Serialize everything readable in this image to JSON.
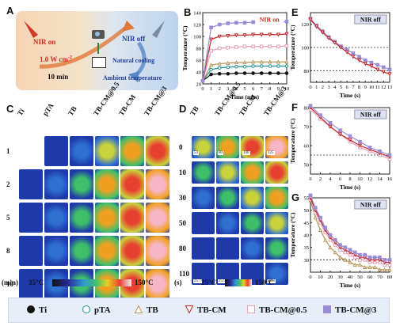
{
  "panels": {
    "a": "A",
    "b": "B",
    "c": "C",
    "d": "D",
    "e": "E",
    "f": "F",
    "g": "G"
  },
  "panel_a": {
    "nir_on": "NIR on",
    "power": "1.0 W cm",
    "power_sup": "-2",
    "time": "10 min",
    "nir_off": "NIR off",
    "natural": "Natural cooling",
    "ambient": "Ambient temperature"
  },
  "panel_c": {
    "columns": [
      "Ti",
      "pTA",
      "TB",
      "TB-CM@0.5",
      "TB-CM",
      "TB-CM@3"
    ],
    "rows": [
      "1",
      "2",
      "5",
      "8",
      "10"
    ],
    "unit": "(min)",
    "scale_min": "35°C",
    "scale_max": "150°C"
  },
  "panel_d": {
    "columns": [
      "TB",
      "TB-CM@0.5",
      "TB-CM",
      "TB-CM@3"
    ],
    "rows": [
      "0",
      "10",
      "30",
      "50",
      "80",
      "110"
    ],
    "unit": "(s)",
    "scale_min": "25°C",
    "scale_max": "150°C",
    "top_temps": [
      "54",
      "80",
      "100",
      "125"
    ],
    "bottom_temps": [
      "25.7",
      "25.9",
      "30.6",
      "30.8"
    ]
  },
  "legend": {
    "items": [
      {
        "label": "Ti",
        "marker": "dot",
        "color": "#111111"
      },
      {
        "label": "pTA",
        "marker": "circle",
        "color": "#1f8f8f"
      },
      {
        "label": "TB",
        "marker": "triangle",
        "color": "#b8965a"
      },
      {
        "label": "TB-CM",
        "marker": "tri-down",
        "color": "#c0262a"
      },
      {
        "label": "TB-CM@0.5",
        "marker": "square",
        "color": "#e8a0b4"
      },
      {
        "label": "TB-CM@3",
        "marker": "square-fill",
        "color": "#9c8cd4"
      }
    ]
  },
  "chart_data": [
    {
      "id": "B",
      "type": "line",
      "tag": "NIR on",
      "xlabel": "Time (min)",
      "ylabel": "Temperature (°C)",
      "xlim": [
        0,
        10
      ],
      "ylim": [
        20,
        140
      ],
      "xticks": [
        0,
        1,
        2,
        3,
        4,
        5,
        6,
        7,
        8,
        9,
        10
      ],
      "yticks": [
        20,
        40,
        60,
        80,
        100,
        120,
        140
      ],
      "x": [
        0,
        1,
        2,
        3,
        4,
        5,
        6,
        7,
        8,
        9,
        10
      ],
      "series": [
        {
          "name": "Ti",
          "color": "#111111",
          "values": [
            25,
            36,
            37,
            37,
            38,
            38,
            38,
            38,
            38,
            38,
            38
          ]
        },
        {
          "name": "pTA",
          "color": "#1f8f8f",
          "values": [
            25,
            44,
            47,
            48,
            49,
            49,
            50,
            50,
            50,
            50,
            50
          ]
        },
        {
          "name": "TB",
          "color": "#b8965a",
          "values": [
            25,
            52,
            54,
            55,
            56,
            56,
            57,
            57,
            57,
            57,
            57
          ]
        },
        {
          "name": "TB-CM@0.5",
          "color": "#e8a0b4",
          "values": [
            25,
            76,
            80,
            81,
            82,
            83,
            83,
            83,
            83,
            83,
            84
          ]
        },
        {
          "name": "TB-CM",
          "color": "#c0262a",
          "values": [
            25,
            95,
            100,
            101,
            102,
            102,
            103,
            103,
            103,
            103,
            104
          ]
        },
        {
          "name": "TB-CM@3",
          "color": "#9c8cd4",
          "values": [
            25,
            115,
            120,
            122,
            123,
            123,
            124,
            124,
            124,
            124,
            125
          ]
        }
      ]
    },
    {
      "id": "E",
      "type": "line",
      "tag": "NIR off",
      "xlabel": "Time (s)",
      "ylabel": "Temperature (°C)",
      "xlim": [
        0,
        13
      ],
      "ylim": [
        70,
        130
      ],
      "xticks": [
        0,
        1,
        2,
        3,
        4,
        5,
        6,
        7,
        8,
        9,
        10,
        11,
        12,
        13
      ],
      "yticks": [
        80,
        100,
        120
      ],
      "hlines": [
        100,
        80
      ],
      "x": [
        0,
        1,
        2,
        3,
        4,
        5,
        6,
        7,
        8,
        9,
        10,
        11,
        12,
        13
      ],
      "series": [
        {
          "name": "TB-CM@3",
          "color": "#9c8cd4",
          "values": [
            125,
            119,
            114,
            109,
            105,
            101,
            98,
            95,
            92,
            89,
            87,
            85,
            83,
            81
          ]
        },
        {
          "name": "TB-CM",
          "color": "#c0262a",
          "values": [
            124,
            118,
            113,
            108,
            104,
            100,
            96,
            92,
            89,
            86,
            84,
            81,
            79,
            77
          ]
        }
      ]
    },
    {
      "id": "F",
      "type": "line",
      "tag": "NIR off",
      "xlabel": "Time (s)",
      "ylabel": "Temperature (°C)",
      "xlim": [
        0,
        16
      ],
      "ylim": [
        45,
        80
      ],
      "xticks": [
        0,
        2,
        4,
        6,
        8,
        10,
        12,
        14,
        16
      ],
      "yticks": [
        50,
        60,
        70,
        80
      ],
      "hlines": [
        55
      ],
      "x": [
        0,
        2,
        4,
        6,
        8,
        10,
        12,
        14,
        16
      ],
      "series": [
        {
          "name": "TB-CM@0.5",
          "color": "#e8a0b4",
          "values": [
            79,
            74,
            70,
            66,
            62,
            59,
            57,
            55,
            53
          ]
        },
        {
          "name": "TB-CM",
          "color": "#c0262a",
          "values": [
            80,
            75,
            70,
            66,
            63,
            60,
            58,
            56,
            54
          ]
        },
        {
          "name": "TB-CM@3",
          "color": "#9c8cd4",
          "values": [
            81,
            76,
            72,
            68,
            65,
            62,
            59,
            57,
            55
          ]
        }
      ]
    },
    {
      "id": "G",
      "type": "line",
      "tag": "NIR off",
      "xlabel": "Time (s)",
      "ylabel": "Temperature (°C)",
      "xlim": [
        0,
        80
      ],
      "ylim": [
        25,
        55
      ],
      "xticks": [
        0,
        10,
        20,
        30,
        40,
        50,
        60,
        70,
        80
      ],
      "yticks": [
        30,
        35,
        40,
        45,
        50,
        55
      ],
      "hlines": [
        30
      ],
      "x": [
        0,
        5,
        10,
        15,
        20,
        25,
        30,
        35,
        40,
        45,
        50,
        55,
        60,
        65,
        70,
        75,
        80
      ],
      "series": [
        {
          "name": "TB",
          "color": "#b8965a",
          "values": [
            54,
            47,
            42,
            38,
            35,
            33,
            31,
            30,
            29,
            28,
            28,
            27,
            27,
            27,
            26,
            26,
            26
          ]
        },
        {
          "name": "TB-CM@0.5",
          "color": "#e8a0b4",
          "values": [
            55,
            49,
            45,
            41,
            38,
            36,
            34,
            33,
            32,
            31,
            30,
            30,
            29,
            29,
            29,
            28,
            28
          ]
        },
        {
          "name": "TB-CM",
          "color": "#c0262a",
          "values": [
            55,
            50,
            46,
            42,
            39,
            37,
            35,
            34,
            33,
            32,
            31,
            31,
            30,
            30,
            30,
            29,
            29
          ]
        },
        {
          "name": "TB-CM@3",
          "color": "#9c8cd4",
          "values": [
            56,
            51,
            47,
            43,
            40,
            38,
            36,
            35,
            34,
            33,
            32,
            32,
            31,
            31,
            31,
            30,
            30
          ]
        }
      ]
    }
  ]
}
